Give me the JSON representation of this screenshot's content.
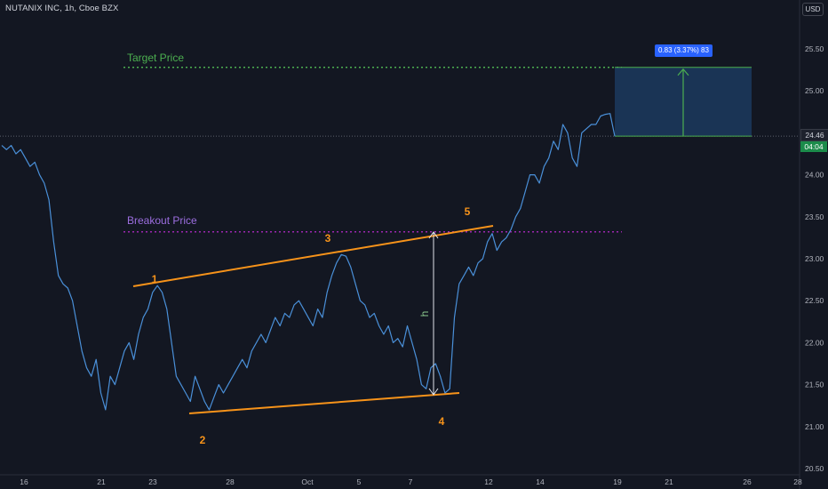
{
  "header": {
    "title": "NUTANIX INC, 1h, Cboe BZX",
    "currency_button": "USD"
  },
  "colors": {
    "background": "#131722",
    "price_line": "#4a90d9",
    "trend_lines": "#f7931a",
    "target_level": "#4caf50",
    "breakout_level": "#9c27b0",
    "target_box": "#1c3a5e",
    "badge_green": "#1b8b4a",
    "measure_label": "#2962ff"
  },
  "chart_data": {
    "type": "line",
    "title": "NUTANIX INC, 1h, Cboe BZX",
    "x_tick_labels": [
      "16",
      "21",
      "23",
      "28",
      "Oct",
      "5",
      "7",
      "12",
      "14",
      "19",
      "21",
      "26",
      "28"
    ],
    "y_tick_labels": [
      "25.50",
      "25.00",
      "24.50",
      "24.00",
      "23.50",
      "23.00",
      "22.50",
      "22.00",
      "21.50",
      "21.00",
      "20.50"
    ],
    "ylim": [
      20.5,
      25.5
    ],
    "grid": false,
    "series": [
      {
        "values": [
          24.35,
          24.3,
          24.35,
          24.25,
          24.3,
          24.2,
          24.1,
          24.15,
          24.0,
          23.9,
          23.7,
          23.2,
          22.8,
          22.7,
          22.65,
          22.5,
          22.2,
          21.9,
          21.7,
          21.6,
          21.8,
          21.4,
          21.2,
          21.6,
          21.5,
          21.7,
          21.9,
          22.0,
          21.8,
          22.1,
          22.3,
          22.4,
          22.6,
          22.68,
          22.6,
          22.4,
          22.0,
          21.6,
          21.5,
          21.4,
          21.3,
          21.6,
          21.45,
          21.3,
          21.2,
          21.35,
          21.5,
          21.4,
          21.5,
          21.6,
          21.7,
          21.8,
          21.7,
          21.9,
          22.0,
          22.1,
          22.0,
          22.15,
          22.3,
          22.2,
          22.35,
          22.3,
          22.45,
          22.5,
          22.4,
          22.3,
          22.2,
          22.4,
          22.3,
          22.6,
          22.8,
          22.95,
          23.05,
          23.03,
          22.9,
          22.7,
          22.5,
          22.45,
          22.3,
          22.35,
          22.2,
          22.1,
          22.2,
          22.0,
          22.05,
          21.95,
          22.2,
          22.0,
          21.8,
          21.5,
          21.45,
          21.7,
          21.75,
          21.6,
          21.4,
          21.45,
          22.3,
          22.7,
          22.8,
          22.9,
          22.8,
          22.95,
          23.0,
          23.2,
          23.3,
          23.1,
          23.2,
          23.25,
          23.35,
          23.5,
          23.6,
          23.8,
          24.0,
          24.0,
          23.9,
          24.1,
          24.2,
          24.4,
          24.3,
          24.6,
          24.5,
          24.2,
          24.1,
          24.5,
          24.55,
          24.6,
          24.6,
          24.7,
          24.72,
          24.73,
          24.46
        ]
      }
    ],
    "annotations": {
      "target_label": "Target Price",
      "breakout_label": "Breakout Price",
      "target_price": 25.28,
      "breakout_price": 23.32,
      "point_labels": [
        "1",
        "2",
        "3",
        "4",
        "5"
      ],
      "height_label": "h",
      "measure_text": "0.83 (3.37%) 83",
      "last_price": "24.46",
      "countdown": "04:04"
    }
  }
}
